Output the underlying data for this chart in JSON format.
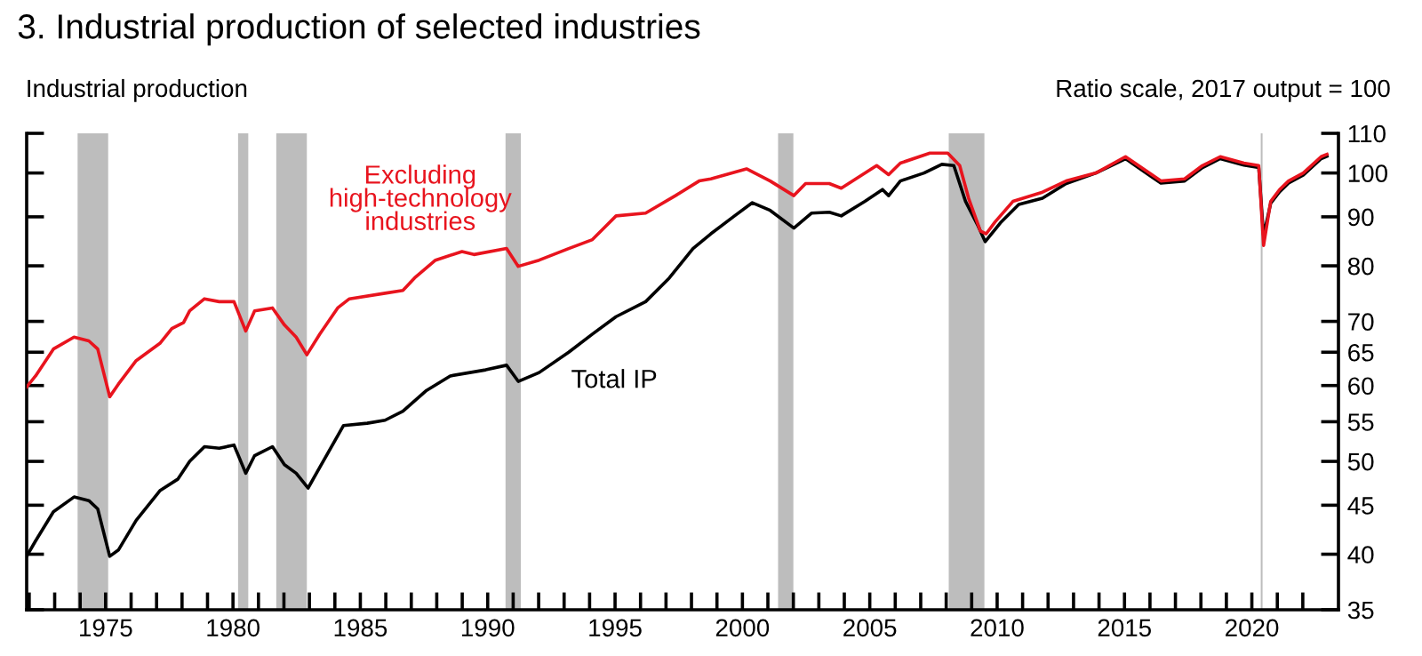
{
  "chart_data": {
    "type": "line",
    "title": "3. Industrial production of selected industries",
    "ylabel": "Industrial production",
    "annotations": [
      "Ratio scale, 2017 output = 100"
    ],
    "log": true,
    "grid": false,
    "legend": false,
    "tick_labels": "xy",
    "xlim": [
      1971.9,
      2023.4
    ],
    "xticks": [
      {
        "value": 1972,
        "label": null
      },
      {
        "value": 1973,
        "label": null
      },
      {
        "value": 1974,
        "label": null
      },
      1975,
      {
        "value": 1976,
        "label": null
      },
      {
        "value": 1977,
        "label": null
      },
      {
        "value": 1978,
        "label": null
      },
      {
        "value": 1979,
        "label": null
      },
      1980,
      {
        "value": 1981,
        "label": null
      },
      {
        "value": 1982,
        "label": null
      },
      {
        "value": 1983,
        "label": null
      },
      {
        "value": 1984,
        "label": null
      },
      1985,
      {
        "value": 1986,
        "label": null
      },
      {
        "value": 1987,
        "label": null
      },
      {
        "value": 1988,
        "label": null
      },
      {
        "value": 1989,
        "label": null
      },
      1990,
      {
        "value": 1991,
        "label": null
      },
      {
        "value": 1992,
        "label": null
      },
      {
        "value": 1993,
        "label": null
      },
      {
        "value": 1994,
        "label": null
      },
      1995,
      {
        "value": 1996,
        "label": null
      },
      {
        "value": 1997,
        "label": null
      },
      {
        "value": 1998,
        "label": null
      },
      {
        "value": 1999,
        "label": null
      },
      2000,
      {
        "value": 2001,
        "label": null
      },
      {
        "value": 2002,
        "label": null
      },
      {
        "value": 2003,
        "label": null
      },
      {
        "value": 2004,
        "label": null
      },
      2005,
      {
        "value": 2006,
        "label": null
      },
      {
        "value": 2007,
        "label": null
      },
      {
        "value": 2008,
        "label": null
      },
      {
        "value": 2009,
        "label": null
      },
      2010,
      {
        "value": 2011,
        "label": null
      },
      {
        "value": 2012,
        "label": null
      },
      {
        "value": 2013,
        "label": null
      },
      {
        "value": 2014,
        "label": null
      },
      2015,
      {
        "value": 2016,
        "label": null
      },
      {
        "value": 2017,
        "label": null
      },
      {
        "value": 2018,
        "label": null
      },
      {
        "value": 2019,
        "label": null
      },
      2020,
      {
        "value": 2021,
        "label": null
      },
      {
        "value": 2022,
        "label": null
      }
    ],
    "ylim": [
      35,
      110
    ],
    "yticks": [
      35,
      40,
      45,
      50,
      55,
      60,
      65,
      70,
      80,
      90,
      100,
      110
    ],
    "bands": [
      {
        "axis": "x",
        "from": 1973.9,
        "to": 1975.1,
        "color": "#bdbdbd"
      },
      {
        "axis": "x",
        "from": 1980.2,
        "to": 1980.6,
        "color": "#bdbdbd"
      },
      {
        "axis": "x",
        "from": 1981.7,
        "to": 1982.9,
        "color": "#bdbdbd"
      },
      {
        "axis": "x",
        "from": 1990.7,
        "to": 1991.3,
        "color": "#bdbdbd"
      },
      {
        "axis": "x",
        "from": 2001.4,
        "to": 2002.0,
        "color": "#bdbdbd"
      },
      {
        "axis": "x",
        "from": 2008.1,
        "to": 2009.5,
        "color": "#bdbdbd"
      },
      {
        "axis": "x",
        "from": 2020.35,
        "to": 2020.42,
        "color": "#bdbdbd"
      }
    ],
    "series": [
      {
        "name": "Total IP",
        "color": "#000000",
        "x": [
          1971.9,
          1972.25,
          1972.95,
          1973.76,
          1974.34,
          1974.69,
          1975.16,
          1975.5,
          1976.2,
          1977.13,
          1977.83,
          1978.3,
          1978.88,
          1979.46,
          1980.04,
          1980.5,
          1980.85,
          1981.55,
          1982.02,
          1982.48,
          1982.95,
          1983.41,
          1984.34,
          1985.27,
          1985.97,
          1986.67,
          1987.6,
          1988.53,
          1989.92,
          1990.74,
          1991.2,
          1992.02,
          1993.18,
          1994.11,
          1995.04,
          1996.2,
          1997.13,
          1998.06,
          1998.76,
          1999.69,
          2000.39,
          2001.09,
          2002.02,
          2002.71,
          2003.41,
          2003.88,
          2004.81,
          2005.5,
          2005.74,
          2006.2,
          2007.13,
          2007.83,
          2008.3,
          2008.76,
          2009.23,
          2009.53,
          2010.16,
          2010.85,
          2011.78,
          2012.71,
          2013.88,
          2015.04,
          2015.97,
          2016.43,
          2017.36,
          2018.06,
          2018.76,
          2019.69,
          2020.27,
          2020.46,
          2020.74,
          2021.09,
          2021.44,
          2022.02,
          2022.72,
          2022.95
        ],
        "values": [
          39.8,
          41.3,
          44.3,
          45.9,
          45.5,
          44.6,
          39.8,
          40.4,
          43.4,
          46.6,
          47.9,
          50.0,
          51.8,
          51.6,
          52.0,
          48.6,
          50.7,
          51.8,
          49.6,
          48.6,
          46.9,
          49.3,
          54.5,
          54.8,
          55.2,
          56.4,
          59.3,
          61.4,
          62.3,
          63.0,
          60.6,
          61.9,
          65.0,
          67.9,
          70.8,
          73.4,
          77.7,
          83.4,
          86.4,
          90.2,
          93.1,
          91.4,
          87.6,
          90.8,
          91.0,
          90.2,
          93.4,
          96.1,
          94.7,
          98.1,
          100.0,
          102.1,
          101.8,
          93.4,
          88.3,
          84.8,
          88.9,
          92.7,
          94.1,
          97.5,
          100.0,
          103.5,
          99.5,
          97.6,
          98.1,
          101.3,
          103.5,
          101.9,
          101.3,
          86.0,
          93.0,
          95.6,
          97.6,
          99.5,
          103.5,
          104.1
        ]
      },
      {
        "name": "Excluding\nhigh-technology\nindustries",
        "color": "#e8141e",
        "x": [
          1971.9,
          1972.25,
          1972.95,
          1973.76,
          1974.34,
          1974.69,
          1975.16,
          1975.5,
          1976.2,
          1977.13,
          1977.6,
          1978.06,
          1978.3,
          1978.88,
          1979.46,
          1980.04,
          1980.5,
          1980.85,
          1981.55,
          1982.02,
          1982.48,
          1982.9,
          1983.41,
          1984.11,
          1984.57,
          1985.97,
          1986.67,
          1987.13,
          1987.95,
          1988.99,
          1989.46,
          1990.74,
          1991.2,
          1992.02,
          1993.18,
          1994.11,
          1995.04,
          1996.2,
          1997.37,
          1998.3,
          1998.76,
          2000.16,
          2001.09,
          2002.02,
          2002.48,
          2003.41,
          2003.88,
          2005.27,
          2005.74,
          2006.2,
          2007.36,
          2008.06,
          2008.53,
          2008.88,
          2009.34,
          2009.57,
          2009.92,
          2010.62,
          2011.78,
          2012.71,
          2013.88,
          2015.04,
          2015.97,
          2016.43,
          2017.36,
          2018.06,
          2018.76,
          2019.69,
          2020.27,
          2020.46,
          2020.74,
          2021.09,
          2021.44,
          2022.02,
          2022.72,
          2022.95
        ],
        "values": [
          59.8,
          61.4,
          65.5,
          67.4,
          66.8,
          65.5,
          58.4,
          60.2,
          63.7,
          66.4,
          68.8,
          69.8,
          71.8,
          73.9,
          73.4,
          73.4,
          68.4,
          71.8,
          72.3,
          69.4,
          67.4,
          64.6,
          67.9,
          72.3,
          73.9,
          74.9,
          75.4,
          77.7,
          81.1,
          82.8,
          82.2,
          83.4,
          79.9,
          81.1,
          83.4,
          85.2,
          90.2,
          90.8,
          94.7,
          98.1,
          98.6,
          101.0,
          98.1,
          94.7,
          97.5,
          97.5,
          96.4,
          101.8,
          99.6,
          102.4,
          104.9,
          104.9,
          101.8,
          94.1,
          87.0,
          86.4,
          88.9,
          93.4,
          95.5,
          98.1,
          100.0,
          104.0,
          100.0,
          98.1,
          98.6,
          101.8,
          104.0,
          102.4,
          101.8,
          84.0,
          93.4,
          96.1,
          98.1,
          100.0,
          104.0,
          104.6
        ]
      }
    ]
  }
}
